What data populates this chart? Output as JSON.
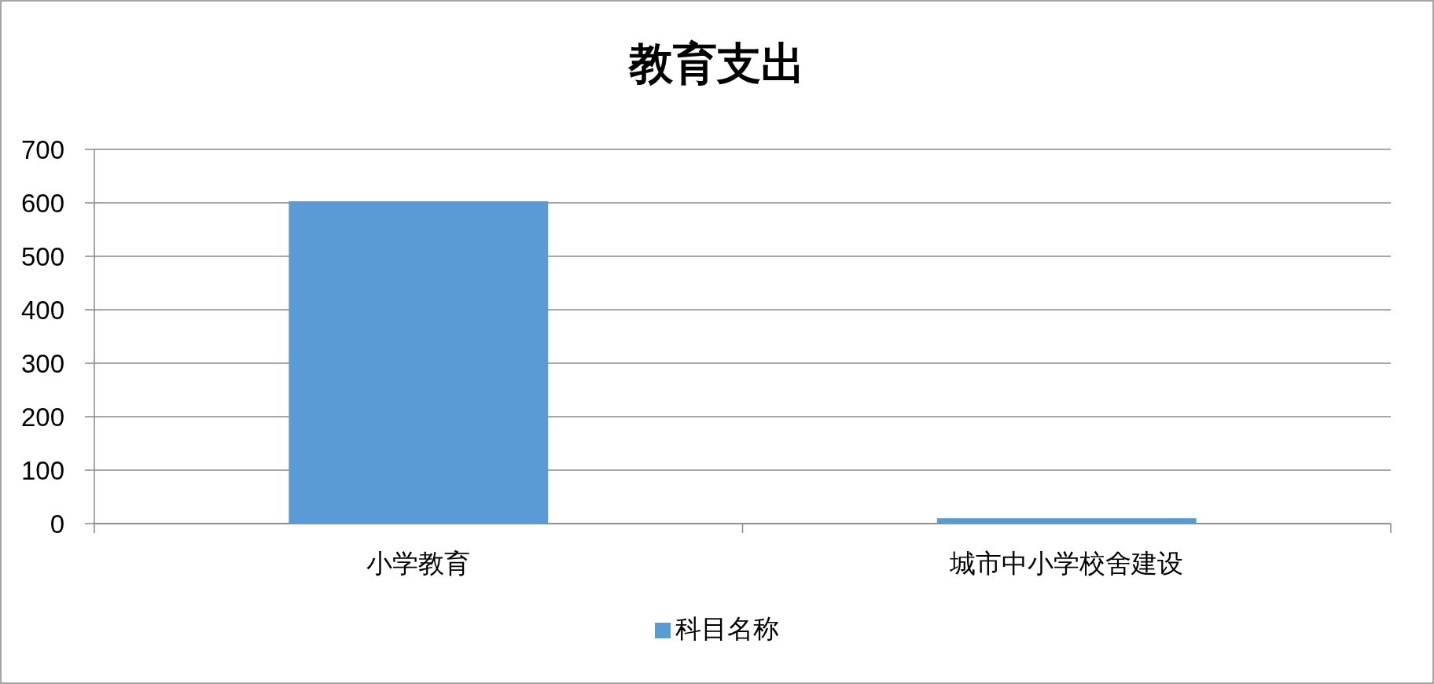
{
  "chart_data": {
    "type": "bar",
    "title": "教育支出",
    "categories": [
      "小学教育",
      "城市中小学校舍建设"
    ],
    "series": [
      {
        "name": "科目名称",
        "color": "#5b9bd5",
        "values": [
          603,
          10
        ]
      }
    ],
    "ylim": [
      0,
      700
    ],
    "yticks": [
      0,
      100,
      200,
      300,
      400,
      500,
      600,
      700
    ],
    "grid": "y",
    "legend": "bottom"
  }
}
